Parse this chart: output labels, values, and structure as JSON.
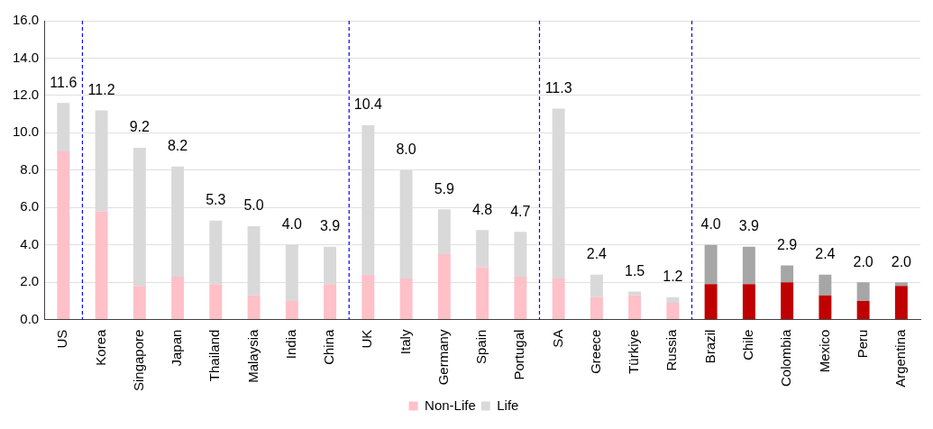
{
  "chart_data": {
    "type": "bar",
    "stacked": true,
    "categories": [
      "US",
      "Korea",
      "Singapore",
      "Japan",
      "Thailand",
      "Malaysia",
      "India",
      "China",
      "UK",
      "Italy",
      "Germany",
      "Spain",
      "Portugal",
      "SA",
      "Greece",
      "Türkiye",
      "Russia",
      "Brazil",
      "Chile",
      "Colombia",
      "Mexico",
      "Peru",
      "Argentina"
    ],
    "series": [
      {
        "name": "Non-Life",
        "color": "#ffc0c8",
        "colors": [
          "#ffc0c8",
          "#ffc0c8",
          "#ffc0c8",
          "#ffc0c8",
          "#ffc0c8",
          "#ffc0c8",
          "#ffc0c8",
          "#ffc0c8",
          "#ffc0c8",
          "#ffc0c8",
          "#ffc0c8",
          "#ffc0c8",
          "#ffc0c8",
          "#ffc0c8",
          "#ffc0c8",
          "#ffc0c8",
          "#ffc0c8",
          "#c00000",
          "#c00000",
          "#c00000",
          "#c00000",
          "#c00000",
          "#c00000"
        ],
        "values": [
          9.0,
          5.8,
          1.8,
          2.3,
          1.9,
          1.3,
          1.0,
          1.9,
          2.4,
          2.2,
          3.5,
          2.8,
          2.3,
          2.2,
          1.2,
          1.3,
          0.9,
          1.9,
          1.9,
          2.0,
          1.3,
          1.0,
          1.8
        ]
      },
      {
        "name": "Life",
        "color": "#d9d9d9",
        "colors": [
          "#d9d9d9",
          "#d9d9d9",
          "#d9d9d9",
          "#d9d9d9",
          "#d9d9d9",
          "#d9d9d9",
          "#d9d9d9",
          "#d9d9d9",
          "#d9d9d9",
          "#d9d9d9",
          "#d9d9d9",
          "#d9d9d9",
          "#d9d9d9",
          "#d9d9d9",
          "#d9d9d9",
          "#d9d9d9",
          "#d9d9d9",
          "#a6a6a6",
          "#a6a6a6",
          "#a6a6a6",
          "#a6a6a6",
          "#a6a6a6",
          "#a6a6a6"
        ],
        "values": [
          2.6,
          5.4,
          7.4,
          5.9,
          3.4,
          3.7,
          3.0,
          2.0,
          8.0,
          5.8,
          2.4,
          2.0,
          2.4,
          9.1,
          1.2,
          0.2,
          0.3,
          2.1,
          2.0,
          0.9,
          1.1,
          1.0,
          0.2
        ]
      }
    ],
    "totals": [
      "11.6",
      "11.2",
      "9.2",
      "8.2",
      "5.3",
      "5.0",
      "4.0",
      "3.9",
      "10.4",
      "8.0",
      "5.9",
      "4.8",
      "4.7",
      "11.3",
      "2.4",
      "1.5",
      "1.2",
      "4.0",
      "3.9",
      "2.9",
      "2.4",
      "2.0",
      "2.0"
    ],
    "ylim": [
      0,
      16
    ],
    "yticks": [
      {
        "value": 0,
        "label": "0.0"
      },
      {
        "value": 2,
        "label": "2.0"
      },
      {
        "value": 4,
        "label": "4.0"
      },
      {
        "value": 6,
        "label": "6.0"
      },
      {
        "value": 8,
        "label": "8.0"
      },
      {
        "value": 10,
        "label": "10.0"
      },
      {
        "value": 12,
        "label": "12.0"
      },
      {
        "value": 14,
        "label": "14.0"
      },
      {
        "value": 16,
        "label": "16.0"
      }
    ],
    "grid": "y",
    "legend": "bottom"
  }
}
